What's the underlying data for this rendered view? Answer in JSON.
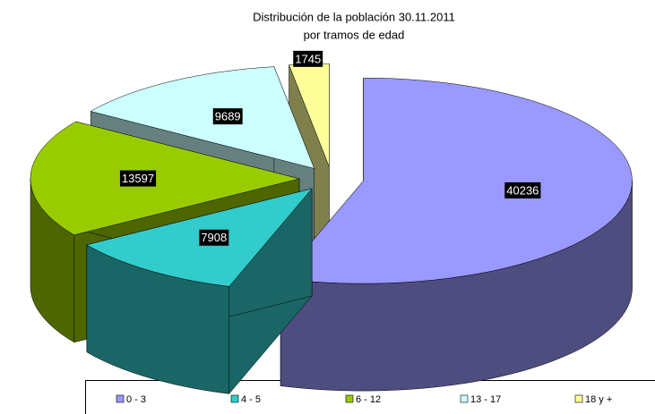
{
  "chart_data": {
    "type": "pie3d",
    "title": "Distribución de la población 30.11.2011",
    "subtitle": "por tramos de edad",
    "categories": [
      "0 - 3",
      "4 - 5",
      "6 - 12",
      "13 - 17",
      "18 y +"
    ],
    "values": [
      40236,
      7908,
      13597,
      9689,
      1745
    ],
    "colors": [
      "#9999ff",
      "#33cccc",
      "#99cc00",
      "#ccffff",
      "#ffff99"
    ],
    "legend": "bottom"
  }
}
